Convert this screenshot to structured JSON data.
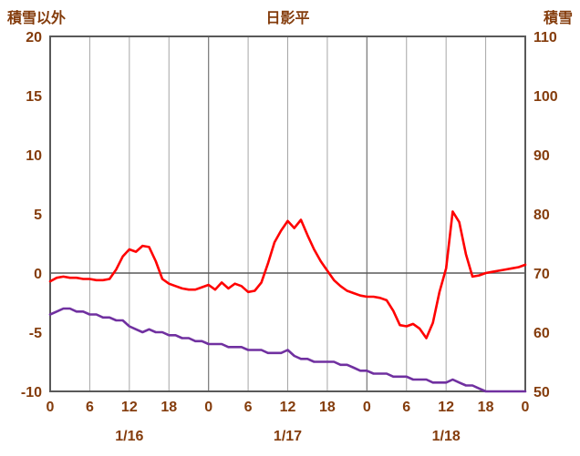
{
  "chart_data": {
    "type": "line",
    "title": "日影平",
    "left_axis": {
      "label": "積雪以外",
      "min": -10,
      "max": 20,
      "ticks": [
        20,
        15,
        10,
        5,
        0,
        -5,
        -10
      ]
    },
    "right_axis": {
      "label": "積雪",
      "min": 50,
      "max": 110,
      "ticks": [
        110,
        100,
        90,
        80,
        70,
        60,
        50
      ]
    },
    "x_axis": {
      "start_hour": 0,
      "end_hour": 72,
      "tick_hours": [
        0,
        6,
        12,
        18,
        24,
        30,
        36,
        42,
        48,
        54,
        60,
        66,
        72
      ],
      "tick_labels": [
        "0",
        "6",
        "12",
        "18",
        "0",
        "6",
        "12",
        "18",
        "0",
        "6",
        "12",
        "18",
        "0"
      ],
      "date_labels": [
        {
          "label": "1/16",
          "center_hour": 12
        },
        {
          "label": "1/17",
          "center_hour": 36
        },
        {
          "label": "1/18",
          "center_hour": 60
        }
      ]
    },
    "grid": {
      "vertical_every_hours": 6,
      "horizontal_zero_line": true
    },
    "legend": "none",
    "series": [
      {
        "name": "積雪以外",
        "axis": "left",
        "color": "#FF0000",
        "values": [
          -0.7,
          -0.4,
          -0.3,
          -0.4,
          -0.4,
          -0.5,
          -0.5,
          -0.6,
          -0.6,
          -0.5,
          0.3,
          1.4,
          2.0,
          1.8,
          2.3,
          2.2,
          1.0,
          -0.5,
          -0.9,
          -1.1,
          -1.3,
          -1.4,
          -1.4,
          -1.2,
          -1.0,
          -1.4,
          -0.8,
          -1.3,
          -0.9,
          -1.1,
          -1.6,
          -1.5,
          -0.8,
          0.8,
          2.6,
          3.6,
          4.4,
          3.8,
          4.5,
          3.2,
          2.0,
          1.0,
          0.2,
          -0.6,
          -1.1,
          -1.5,
          -1.7,
          -1.9,
          -2.0,
          -2.0,
          -2.1,
          -2.3,
          -3.2,
          -4.4,
          -4.5,
          -4.3,
          -4.7,
          -5.5,
          -4.2,
          -1.6,
          0.4,
          5.2,
          4.3,
          1.6,
          -0.3,
          -0.2,
          0.0,
          0.1,
          0.2,
          0.3,
          0.4,
          0.5,
          0.7
        ]
      },
      {
        "name": "積雪",
        "axis": "right",
        "color": "#7030A0",
        "values": [
          63,
          63.5,
          64,
          64,
          63.5,
          63.5,
          63,
          63,
          62.5,
          62.5,
          62,
          62,
          61,
          60.5,
          60,
          60.5,
          60,
          60,
          59.5,
          59.5,
          59,
          59,
          58.5,
          58.5,
          58,
          58,
          58,
          57.5,
          57.5,
          57.5,
          57,
          57,
          57,
          56.5,
          56.5,
          56.5,
          57,
          56,
          55.5,
          55.5,
          55,
          55,
          55,
          55,
          54.5,
          54.5,
          54,
          53.5,
          53.5,
          53,
          53,
          53,
          52.5,
          52.5,
          52.5,
          52,
          52,
          52,
          51.5,
          51.5,
          51.5,
          52,
          51.5,
          51,
          51,
          50.5,
          50,
          50,
          50,
          50,
          50,
          50,
          50
        ]
      }
    ],
    "colors": {
      "label_text": "#843C0C",
      "border": "#595959",
      "grid_line": "#A6A6A6",
      "day_grid_line": "#808080",
      "zero_line": "#595959",
      "background": "#FFFFFF"
    }
  }
}
